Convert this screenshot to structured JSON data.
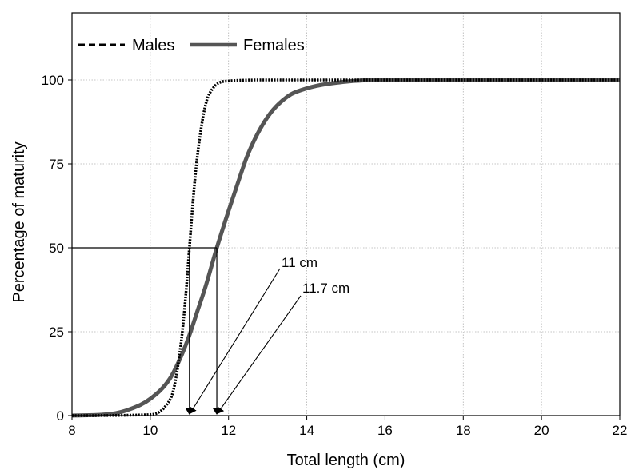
{
  "chart_data": {
    "type": "line",
    "title": "",
    "xlabel": "Total length (cm)",
    "ylabel": "Percentage of maturity",
    "xlim": [
      8,
      22
    ],
    "ylim": [
      0,
      120
    ],
    "xticks": [
      "8",
      "10",
      "12",
      "14",
      "16",
      "18",
      "20",
      "22"
    ],
    "yticks": [
      "0",
      "25",
      "50",
      "75",
      "100"
    ],
    "grid": true,
    "legend_position": "top-left",
    "series": [
      {
        "name": "Males",
        "style": "dashed",
        "color": "#000000",
        "x": [
          8,
          10,
          10.4,
          10.6,
          10.8,
          10.9,
          11,
          11.1,
          11.2,
          11.4,
          11.6,
          12,
          13,
          22
        ],
        "y": [
          0,
          0.3,
          3,
          8,
          23,
          35,
          50,
          65,
          77,
          92,
          97.5,
          99.7,
          100,
          100
        ]
      },
      {
        "name": "Females",
        "style": "solid",
        "color": "#555555",
        "x": [
          8,
          9,
          9.5,
          10,
          10.5,
          10.8,
          11,
          11.2,
          11.4,
          11.7,
          12,
          12.2,
          12.5,
          13,
          13.5,
          14,
          15,
          16,
          22
        ],
        "y": [
          0,
          0.5,
          2,
          5,
          11,
          18,
          24,
          31,
          38,
          50,
          61,
          68,
          78,
          89,
          95,
          97.5,
          99.5,
          100,
          100
        ]
      }
    ],
    "annotations": [
      {
        "label": "11 cm",
        "x": 11,
        "y": 50
      },
      {
        "label": "11.7 cm",
        "x": 11.7,
        "y": 50
      }
    ]
  }
}
